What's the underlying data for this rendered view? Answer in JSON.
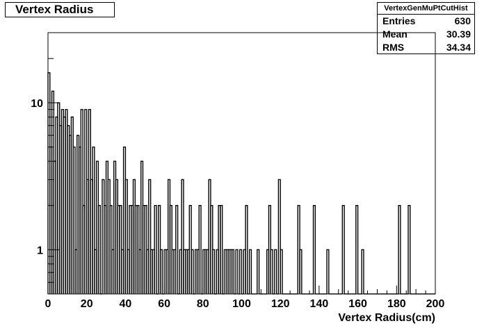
{
  "title": "Vertex Radius",
  "stats": {
    "name": "VertexGenMuPtCutHist",
    "rows": [
      {
        "label": "Entries",
        "value": "630"
      },
      {
        "label": "Mean",
        "value": "30.39"
      },
      {
        "label": "RMS",
        "value": "34.34"
      }
    ]
  },
  "chart_data": {
    "type": "bar",
    "histogram": true,
    "xlabel": "Vertex Radius(cm)",
    "ylabel": "",
    "xlim": [
      0,
      200
    ],
    "ylim": [
      0.5,
      30
    ],
    "ylog": true,
    "grid": false,
    "bin_width": 1,
    "x_ticks": [
      0,
      20,
      40,
      60,
      80,
      100,
      120,
      140,
      160,
      180,
      200
    ],
    "x_tick_labels": [
      "0",
      "20",
      "40",
      "60",
      "80",
      "100",
      "120",
      "140",
      "160",
      "180",
      "200"
    ],
    "y_ticks": [
      1,
      10
    ],
    "y_tick_labels": [
      "1",
      "10"
    ],
    "bin_centers": [
      0.5,
      1.5,
      2.5,
      3.5,
      4.5,
      5.5,
      6.5,
      7.5,
      8.5,
      9.5,
      10.5,
      11.5,
      12.5,
      13.5,
      14.5,
      15.5,
      16.5,
      17.5,
      18.5,
      19.5,
      20.5,
      21.5,
      22.5,
      23.5,
      24.5,
      25.5,
      26.5,
      27.5,
      28.5,
      29.5,
      30.5,
      31.5,
      32.5,
      33.5,
      34.5,
      35.5,
      36.5,
      37.5,
      38.5,
      39.5,
      40.5,
      41.5,
      42.5,
      43.5,
      44.5,
      45.5,
      46.5,
      47.5,
      48.5,
      49.5,
      50.5,
      51.5,
      52.5,
      53.5,
      54.5,
      55.5,
      56.5,
      57.5,
      58.5,
      59.5,
      60.5,
      61.5,
      62.5,
      63.5,
      64.5,
      65.5,
      66.5,
      67.5,
      68.5,
      69.5,
      70.5,
      71.5,
      72.5,
      73.5,
      74.5,
      75.5,
      76.5,
      77.5,
      78.5,
      79.5,
      80.5,
      81.5,
      82.5,
      83.5,
      84.5,
      85.5,
      86.5,
      87.5,
      88.5,
      89.5,
      90.5,
      91.5,
      92.5,
      93.5,
      94.5,
      95.5,
      96.5,
      97.5,
      98.5,
      99.5,
      100.5,
      101.5,
      102.5,
      103.5,
      104.5,
      105.5,
      106.5,
      107.5,
      108.5,
      109.5,
      110.5,
      111.5,
      112.5,
      113.5,
      114.5,
      115.5,
      116.5,
      117.5,
      118.5,
      119.5,
      120.5,
      121.5,
      122.5,
      123.5,
      124.5,
      125.5,
      126.5,
      127.5,
      128.5,
      129.5,
      130.5,
      131.5,
      132.5,
      133.5,
      134.5,
      135.5,
      136.5,
      137.5,
      138.5,
      139.5,
      140.5,
      141.5,
      142.5,
      143.5,
      144.5,
      145.5,
      146.5,
      147.5,
      148.5,
      149.5,
      150.5,
      151.5,
      152.5,
      153.5,
      154.5,
      155.5,
      156.5,
      157.5,
      158.5,
      159.5,
      160.5,
      161.5,
      162.5,
      163.5,
      164.5,
      165.5,
      166.5,
      167.5,
      168.5,
      169.5,
      170.5,
      171.5,
      172.5,
      173.5,
      174.5,
      175.5,
      176.5,
      177.5,
      178.5,
      179.5,
      180.5,
      181.5,
      182.5,
      183.5,
      184.5,
      185.5,
      186.5,
      187.5,
      188.5,
      189.5,
      190.5,
      191.5,
      192.5,
      193.5,
      194.5,
      195.5,
      196.5,
      197.5,
      198.5,
      199.5
    ],
    "values": [
      16,
      5,
      12,
      4,
      8,
      10,
      7,
      9,
      8,
      9,
      7,
      6,
      8,
      5,
      1,
      6,
      5,
      9,
      2,
      9,
      3,
      9,
      3,
      5,
      1,
      4,
      2,
      0,
      3,
      2,
      4,
      3,
      2,
      1,
      4,
      3,
      2,
      2,
      1,
      5,
      3,
      1,
      2,
      2,
      3,
      2,
      2,
      1,
      4,
      2,
      2,
      1,
      3,
      1,
      1,
      2,
      0,
      2,
      1,
      0,
      1,
      1,
      3,
      2,
      1,
      1,
      2,
      0,
      1,
      3,
      1,
      1,
      1,
      2,
      1,
      0,
      1,
      1,
      2,
      0,
      1,
      1,
      1,
      3,
      2,
      1,
      0,
      1,
      2,
      2,
      0,
      1,
      1,
      1,
      1,
      1,
      0,
      1,
      0,
      1,
      0,
      1,
      2,
      0,
      1,
      0,
      0,
      0,
      1,
      0,
      0,
      0,
      0,
      1,
      2,
      1,
      0,
      1,
      0,
      3,
      1,
      0,
      0,
      0,
      0,
      0,
      0,
      0,
      0,
      2,
      1,
      0,
      0,
      0,
      0,
      0,
      0,
      2,
      0,
      0,
      0,
      0,
      0,
      0,
      1,
      0,
      0,
      0,
      0,
      0,
      0,
      0,
      2,
      0,
      0,
      0,
      0,
      0,
      0,
      2,
      0,
      0,
      1,
      0,
      0,
      0,
      0,
      0,
      0,
      0,
      0,
      0,
      0,
      0,
      0,
      0,
      0,
      0,
      0,
      0,
      0,
      2,
      0,
      0,
      0,
      0,
      2,
      0,
      0,
      0,
      0,
      0,
      0,
      0,
      0,
      0,
      0,
      0,
      0,
      0
    ]
  }
}
